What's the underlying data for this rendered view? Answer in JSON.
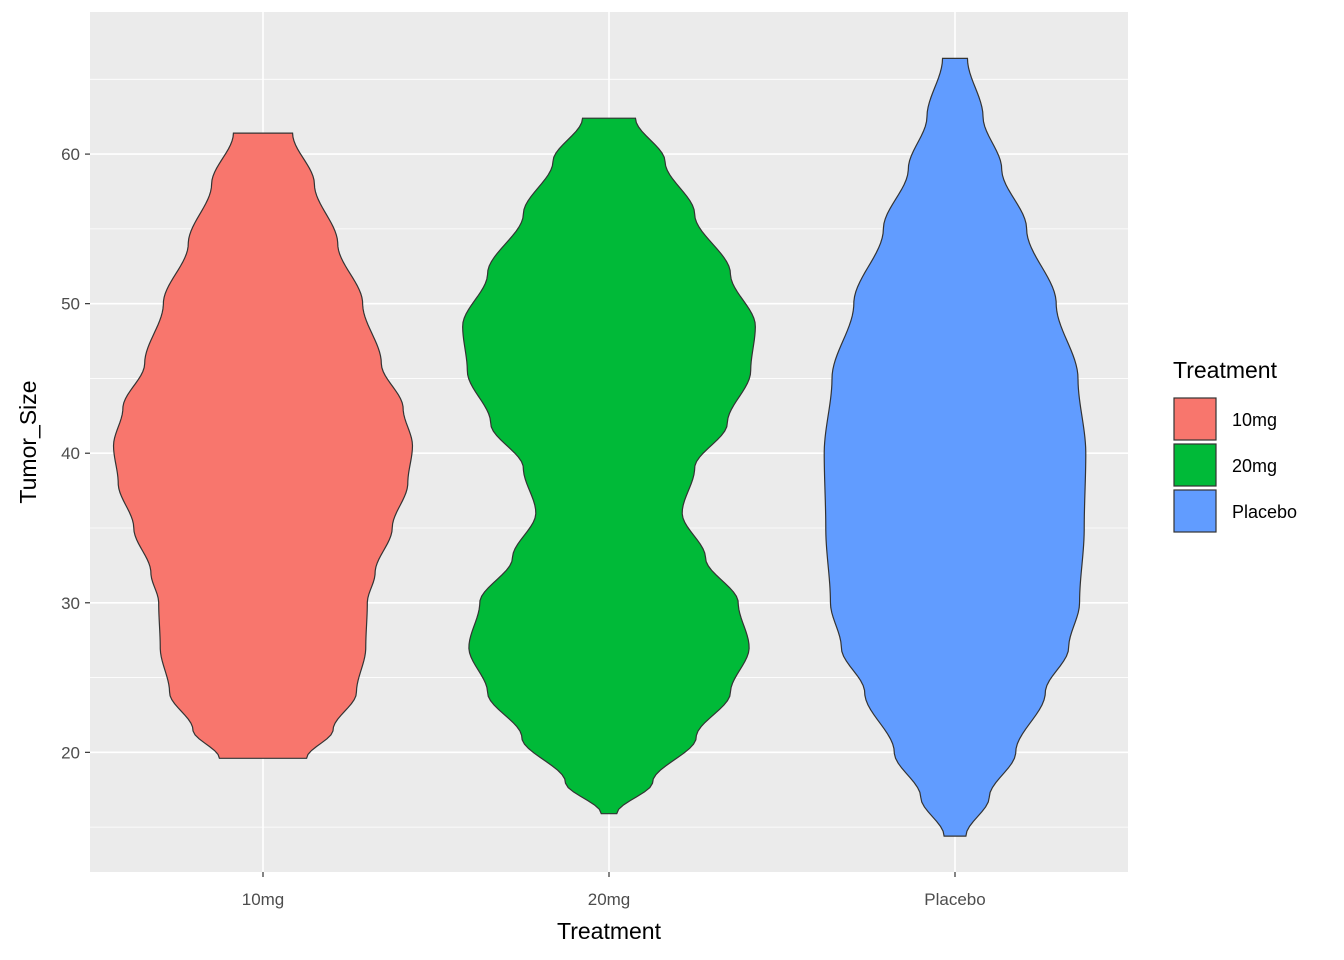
{
  "chart_data": {
    "type": "violin",
    "xlabel": "Treatment",
    "ylabel": "Tumor_Size",
    "ylim": [
      12.0,
      69.5
    ],
    "yticks": [
      20,
      30,
      40,
      50,
      60
    ],
    "grid": true,
    "legend_title": "Treatment",
    "legend_position": "right",
    "categories": [
      "10mg",
      "20mg",
      "Placebo"
    ],
    "colors": {
      "10mg": "#F8766D",
      "20mg": "#00BA38",
      "Placebo": "#619CFF"
    },
    "series": [
      {
        "name": "10mg",
        "min": 19.6,
        "max": 61.4,
        "density_profile": [
          [
            19.6,
            0.28
          ],
          [
            21.5,
            0.45
          ],
          [
            24.0,
            0.6
          ],
          [
            27.0,
            0.66
          ],
          [
            30.0,
            0.67
          ],
          [
            32.0,
            0.72
          ],
          [
            35.0,
            0.83
          ],
          [
            38.0,
            0.93
          ],
          [
            40.5,
            0.96
          ],
          [
            43.0,
            0.9
          ],
          [
            46.0,
            0.76
          ],
          [
            50.0,
            0.64
          ],
          [
            54.0,
            0.48
          ],
          [
            58.0,
            0.33
          ],
          [
            61.4,
            0.19
          ]
        ]
      },
      {
        "name": "20mg",
        "min": 15.9,
        "max": 62.4,
        "density_profile": [
          [
            15.9,
            0.05
          ],
          [
            18.0,
            0.28
          ],
          [
            21.0,
            0.56
          ],
          [
            24.0,
            0.78
          ],
          [
            27.0,
            0.9
          ],
          [
            30.0,
            0.83
          ],
          [
            33.0,
            0.62
          ],
          [
            36.0,
            0.47
          ],
          [
            39.0,
            0.55
          ],
          [
            42.0,
            0.76
          ],
          [
            45.5,
            0.91
          ],
          [
            48.5,
            0.94
          ],
          [
            52.0,
            0.78
          ],
          [
            56.0,
            0.55
          ],
          [
            59.5,
            0.36
          ],
          [
            62.4,
            0.17
          ]
        ]
      },
      {
        "name": "Placebo",
        "min": 14.4,
        "max": 66.4,
        "density_profile": [
          [
            14.4,
            0.07
          ],
          [
            17.0,
            0.22
          ],
          [
            20.0,
            0.39
          ],
          [
            24.0,
            0.58
          ],
          [
            27.0,
            0.73
          ],
          [
            30.0,
            0.8
          ],
          [
            35.0,
            0.83
          ],
          [
            40.0,
            0.84
          ],
          [
            45.0,
            0.79
          ],
          [
            50.0,
            0.65
          ],
          [
            55.0,
            0.46
          ],
          [
            59.0,
            0.3
          ],
          [
            62.5,
            0.18
          ],
          [
            66.4,
            0.08
          ]
        ]
      }
    ]
  }
}
